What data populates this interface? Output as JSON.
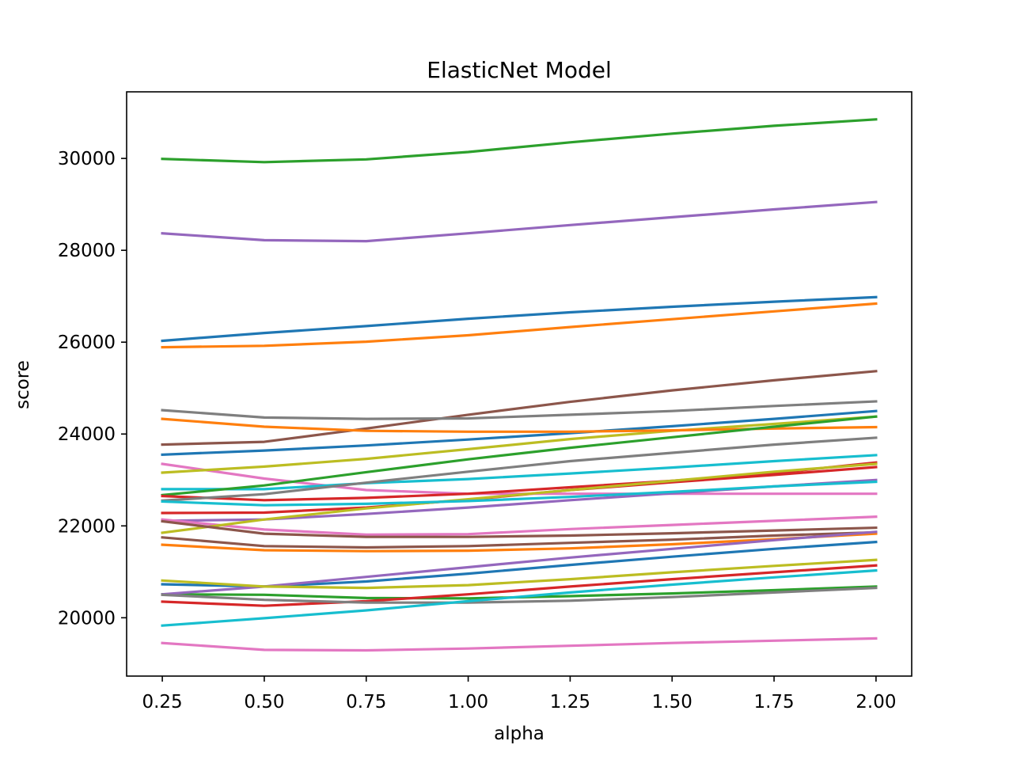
{
  "chart_data": {
    "type": "line",
    "title": "ElasticNet Model",
    "xlabel": "alpha",
    "ylabel": "score",
    "x": [
      0.25,
      0.5,
      0.75,
      1.0,
      1.25,
      1.5,
      1.75,
      2.0
    ],
    "x_ticks": [
      "0.25",
      "0.50",
      "0.75",
      "1.00",
      "1.25",
      "1.50",
      "1.75",
      "2.00"
    ],
    "y_ticks": [
      20000,
      22000,
      24000,
      26000,
      28000,
      30000
    ],
    "y_tick_labels": [
      "20000",
      "22000",
      "24000",
      "26000",
      "28000",
      "30000"
    ],
    "xlim": [
      0.1625,
      2.0875
    ],
    "ylim": [
      18730,
      31450
    ],
    "grid": false,
    "legend": "none",
    "series": [
      {
        "color": "#1f77b4",
        "values": [
          26030,
          26200,
          26350,
          26510,
          26650,
          26770,
          26880,
          26980
        ]
      },
      {
        "color": "#ff7f0e",
        "values": [
          25890,
          25920,
          26010,
          26150,
          26330,
          26500,
          26670,
          26840
        ]
      },
      {
        "color": "#2ca02c",
        "values": [
          29990,
          29920,
          29980,
          30140,
          30350,
          30540,
          30710,
          30850
        ]
      },
      {
        "color": "#d62728",
        "values": [
          22280,
          22290,
          22400,
          22570,
          22780,
          22950,
          23110,
          23280
        ]
      },
      {
        "color": "#9467bd",
        "values": [
          28370,
          28220,
          28200,
          28370,
          28550,
          28720,
          28890,
          29050
        ]
      },
      {
        "color": "#8c564b",
        "values": [
          23770,
          23830,
          24120,
          24420,
          24700,
          24950,
          25170,
          25370
        ]
      },
      {
        "color": "#e377c2",
        "values": [
          23350,
          23030,
          22780,
          22700,
          22700,
          22700,
          22700,
          22700
        ]
      },
      {
        "color": "#7f7f7f",
        "values": [
          24520,
          24360,
          24330,
          24340,
          24420,
          24500,
          24610,
          24710
        ]
      },
      {
        "color": "#bcbd22",
        "values": [
          23160,
          23290,
          23460,
          23670,
          23890,
          24070,
          24220,
          24380
        ]
      },
      {
        "color": "#17becf",
        "values": [
          22800,
          22800,
          22930,
          23020,
          23140,
          23270,
          23410,
          23540
        ]
      },
      {
        "color": "#1f77b4",
        "values": [
          23550,
          23640,
          23750,
          23880,
          24020,
          24170,
          24330,
          24500
        ]
      },
      {
        "color": "#ff7f0e",
        "values": [
          24330,
          24160,
          24070,
          24050,
          24050,
          24080,
          24120,
          24150
        ]
      },
      {
        "color": "#2ca02c",
        "values": [
          22670,
          22880,
          23170,
          23450,
          23700,
          23930,
          24160,
          24380
        ]
      },
      {
        "color": "#d62728",
        "values": [
          22650,
          22560,
          22610,
          22700,
          22840,
          22980,
          23150,
          23380
        ]
      },
      {
        "color": "#9467bd",
        "values": [
          22110,
          22140,
          22260,
          22400,
          22560,
          22710,
          22860,
          23000
        ]
      },
      {
        "color": "#8c564b",
        "values": [
          21750,
          21560,
          21530,
          21560,
          21630,
          21700,
          21790,
          21860
        ]
      },
      {
        "color": "#e377c2",
        "values": [
          22140,
          21920,
          21810,
          21820,
          21930,
          22020,
          22110,
          22200
        ]
      },
      {
        "color": "#7f7f7f",
        "values": [
          22550,
          22690,
          22940,
          23180,
          23410,
          23590,
          23770,
          23920
        ]
      },
      {
        "color": "#bcbd22",
        "values": [
          21850,
          22140,
          22380,
          22580,
          22780,
          22980,
          23180,
          23350
        ]
      },
      {
        "color": "#17becf",
        "values": [
          22530,
          22450,
          22480,
          22540,
          22630,
          22740,
          22860,
          22960
        ]
      },
      {
        "color": "#1f77b4",
        "values": [
          20730,
          20680,
          20790,
          20960,
          21150,
          21330,
          21500,
          21650
        ]
      },
      {
        "color": "#ff7f0e",
        "values": [
          21590,
          21470,
          21450,
          21460,
          21510,
          21600,
          21710,
          21830
        ]
      },
      {
        "color": "#2ca02c",
        "values": [
          20510,
          20500,
          20430,
          20420,
          20470,
          20530,
          20600,
          20680
        ]
      },
      {
        "color": "#d62728",
        "values": [
          20350,
          20260,
          20360,
          20510,
          20680,
          20840,
          20990,
          21140
        ]
      },
      {
        "color": "#9467bd",
        "values": [
          20510,
          20680,
          20890,
          21100,
          21310,
          21500,
          21690,
          21870
        ]
      },
      {
        "color": "#8c564b",
        "values": [
          22100,
          21830,
          21760,
          21760,
          21790,
          21840,
          21900,
          21960
        ]
      },
      {
        "color": "#e377c2",
        "values": [
          19450,
          19300,
          19290,
          19330,
          19390,
          19450,
          19500,
          19550
        ]
      },
      {
        "color": "#7f7f7f",
        "values": [
          20500,
          20390,
          20330,
          20330,
          20370,
          20450,
          20550,
          20650
        ]
      },
      {
        "color": "#bcbd22",
        "values": [
          20810,
          20680,
          20650,
          20710,
          20840,
          20990,
          21130,
          21260
        ]
      },
      {
        "color": "#17becf",
        "values": [
          19830,
          19990,
          20160,
          20360,
          20550,
          20720,
          20880,
          21030
        ]
      }
    ]
  }
}
